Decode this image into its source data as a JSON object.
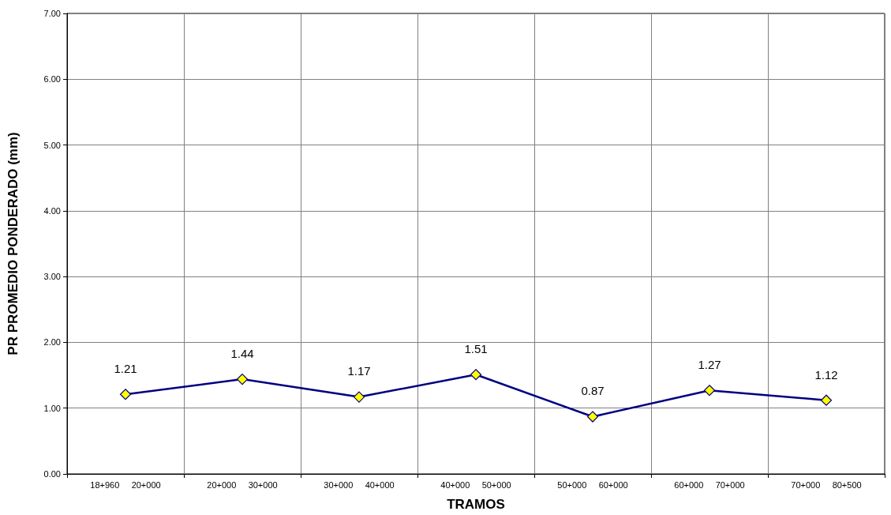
{
  "chart_data": {
    "type": "line",
    "xlabel": "TRAMOS",
    "ylabel": "PR PROMEDIO PONDERADO (mm)",
    "categories": [
      "18+960     20+000",
      "20+000     30+000",
      "30+000     40+000",
      "40+000     50+000",
      "50+000     60+000",
      "60+000     70+000",
      "70+000     80+500"
    ],
    "series": [
      {
        "color": "#000080",
        "values": [
          1.21,
          1.44,
          1.17,
          1.51,
          0.87,
          1.27,
          1.12
        ]
      }
    ],
    "ylim": [
      0,
      7
    ],
    "yticks": [
      {
        "value": 0,
        "label": "0.00"
      },
      {
        "value": 1,
        "label": "1.00"
      },
      {
        "value": 2,
        "label": "2.00"
      },
      {
        "value": 3,
        "label": "3.00"
      },
      {
        "value": 4,
        "label": "4.00"
      },
      {
        "value": 5,
        "label": "5.00"
      },
      {
        "value": 6,
        "label": "6.00"
      },
      {
        "value": 7,
        "label": "7.00"
      }
    ],
    "grid": true,
    "marker": "diamond",
    "line_style": "solid",
    "data_labels": true
  }
}
